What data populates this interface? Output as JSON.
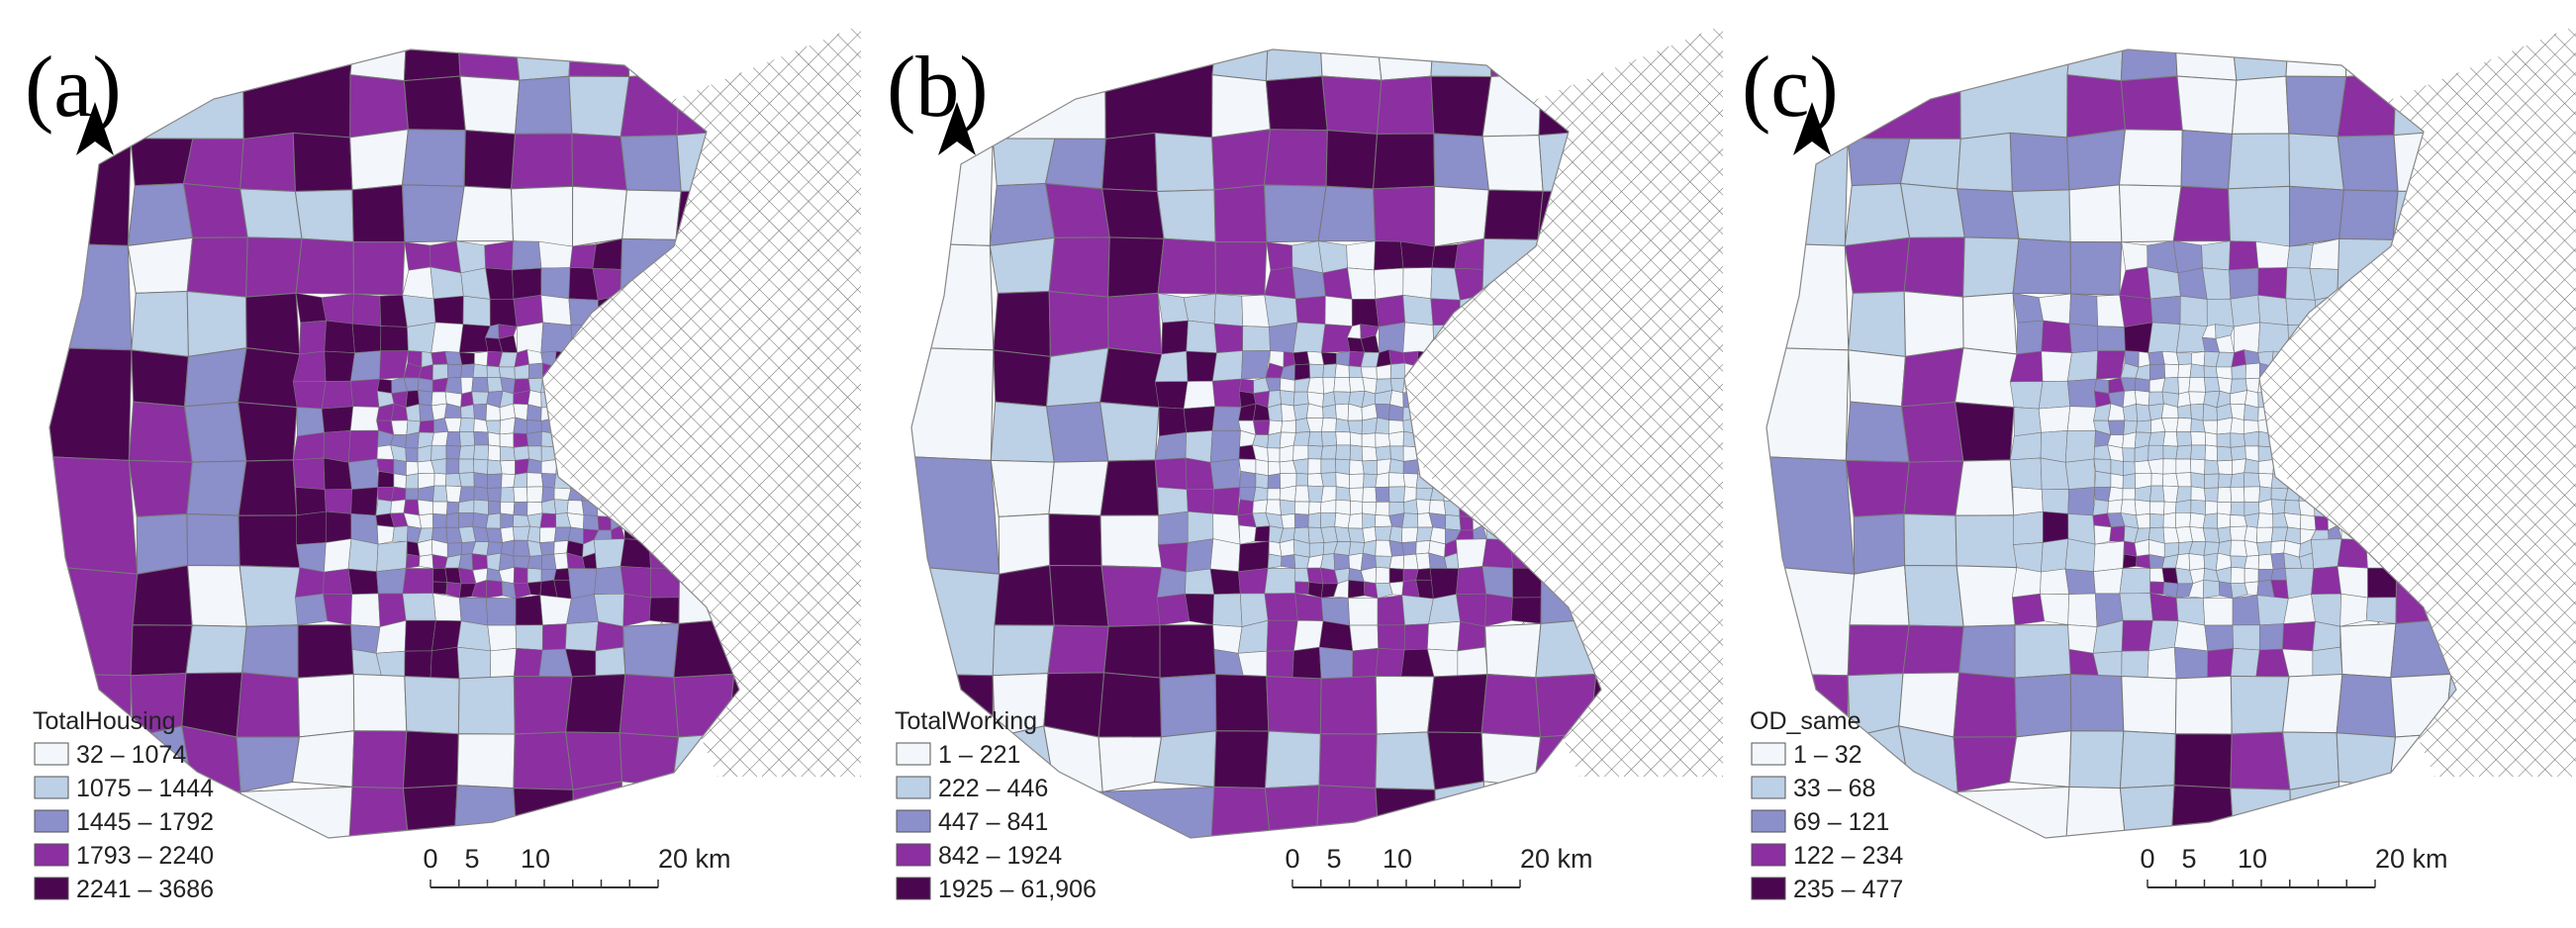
{
  "panels": [
    {
      "label": "(a)",
      "legend": {
        "title": "TotalHousing",
        "items": [
          "32 – 1074",
          "1075 – 1444",
          "1445 – 1792",
          "1793 – 2240",
          "2241 – 3686"
        ],
        "colors": [
          "#f3f7fb",
          "#bcd0e6",
          "#8b8fca",
          "#8b2fa1",
          "#4b0650"
        ]
      },
      "scale": [
        "0",
        "5",
        "10",
        "20 km"
      ]
    },
    {
      "label": "(b)",
      "legend": {
        "title": "TotalWorking",
        "items": [
          "1 – 221",
          "222 – 446",
          "447 – 841",
          "842 – 1924",
          "1925 – 61,906"
        ],
        "colors": [
          "#f3f7fb",
          "#bcd0e6",
          "#8b8fca",
          "#8b2fa1",
          "#4b0650"
        ]
      },
      "scale": [
        "0",
        "5",
        "10",
        "20 km"
      ]
    },
    {
      "label": "(c)",
      "legend": {
        "title": "OD_same",
        "items": [
          "1 – 32",
          "33 – 68",
          "69 – 121",
          "122 – 234",
          "235 – 477"
        ],
        "colors": [
          "#f3f7fb",
          "#bcd0e6",
          "#8b8fca",
          "#8b2fa1",
          "#4b0650"
        ]
      },
      "scale": [
        "0",
        "5",
        "10",
        "20 km"
      ]
    }
  ]
}
